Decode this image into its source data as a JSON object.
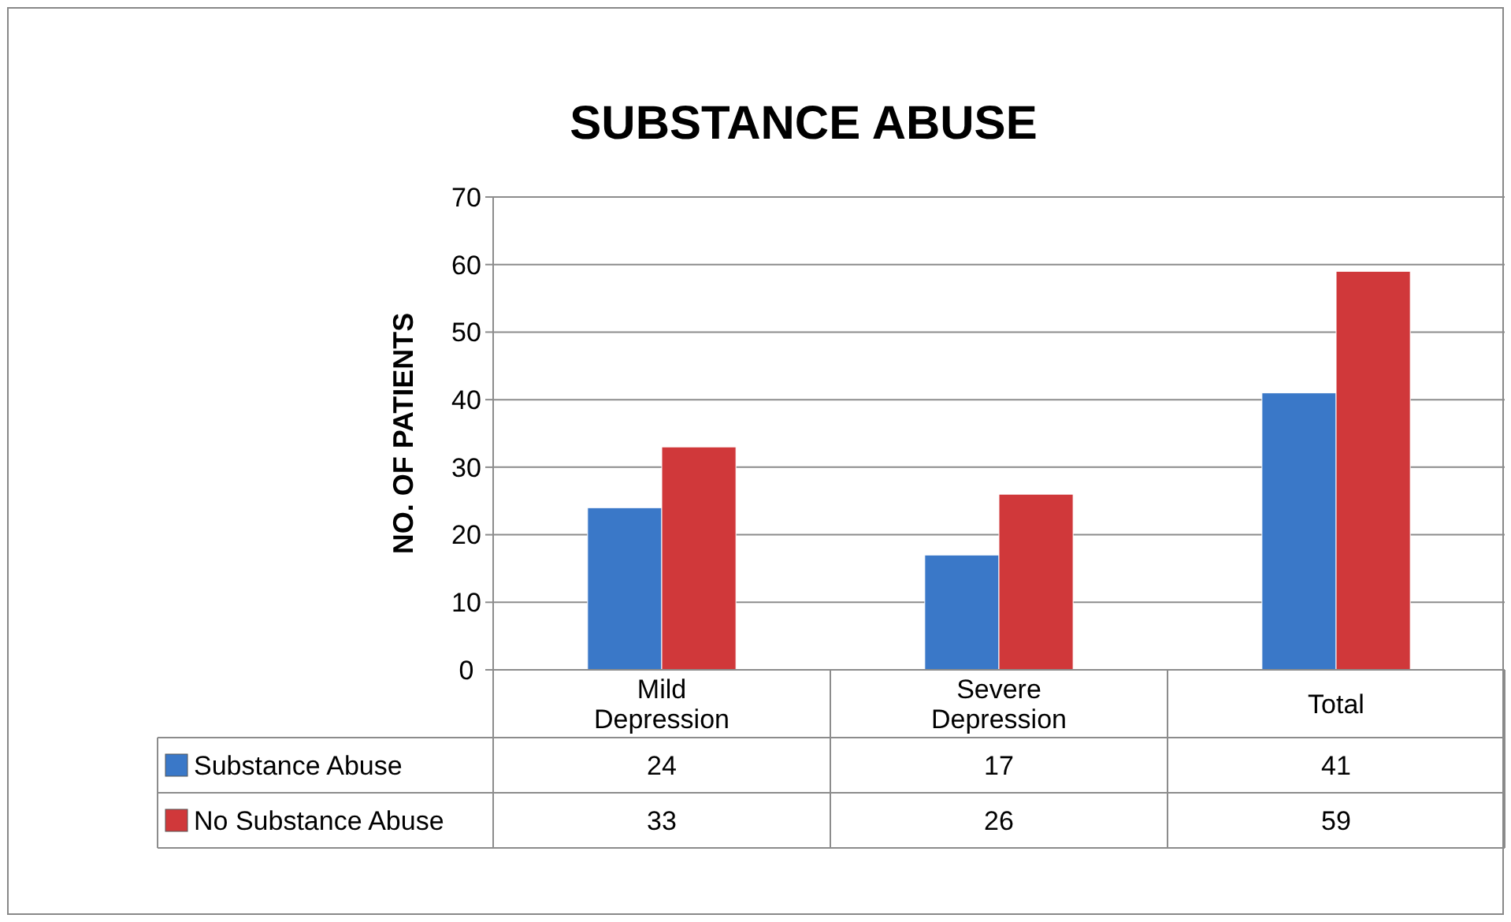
{
  "chart_data": {
    "type": "bar",
    "title": "SUBSTANCE ABUSE",
    "ylabel": "NO. OF PATIENTS",
    "categories": [
      "Mild Depression",
      "Severe Depression",
      "Total"
    ],
    "series": [
      {
        "name": "Substance Abuse",
        "color": "#3a78c8",
        "values": [
          24,
          17,
          41
        ]
      },
      {
        "name": "No Substance Abuse",
        "color": "#d0383a",
        "values": [
          33,
          26,
          59
        ]
      }
    ],
    "ylim": [
      0,
      70
    ],
    "yticks": [
      0,
      10,
      20,
      30,
      40,
      50,
      60,
      70
    ],
    "grid": "y",
    "legend": "bottom",
    "data_labels": true
  }
}
